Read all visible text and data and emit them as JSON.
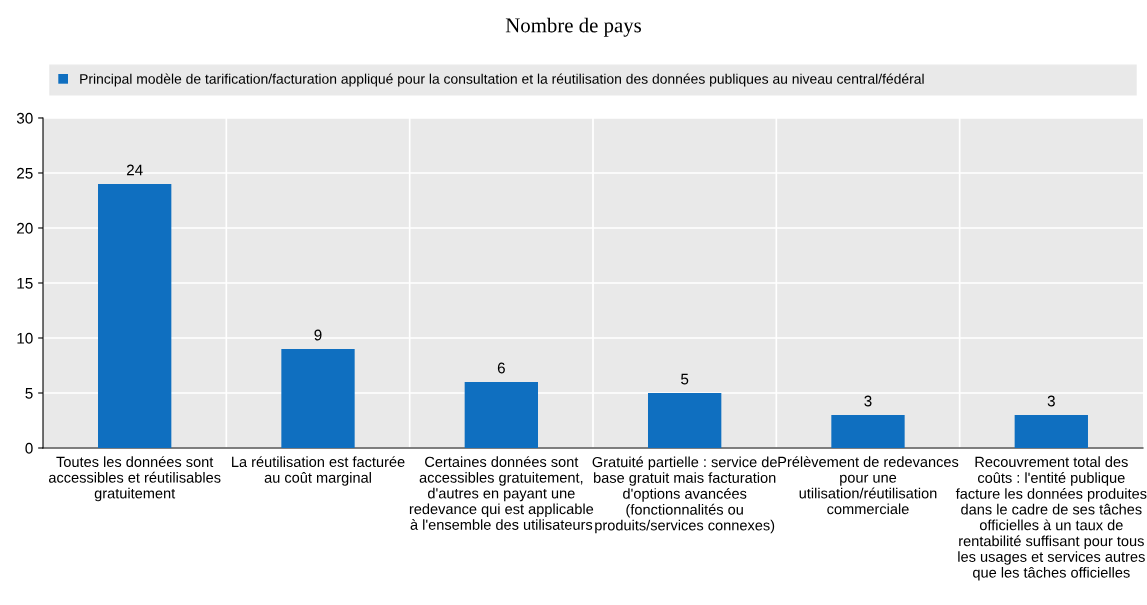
{
  "chart_data": {
    "type": "bar",
    "title": "Nombre de pays",
    "categories": [
      "Toutes les données sont\naccessibles et réutilisables\ngratuitement",
      "La réutilisation est facturée\nau coût marginal",
      "Certaines données sont\naccessibles gratuitement,\nd'autres en payant une\nredevance qui est applicable\nà l'ensemble des utilisateurs",
      "Gratuité partielle : service de\nbase gratuit mais facturation\nd'options avancées\n(fonctionnalités ou\nproduits/services connexes)",
      "Prélèvement de redevances\npour une\nutilisation/réutilisation\ncommerciale",
      "Recouvrement total des\ncoûts : l'entité publique\nfacture les données produites\ndans le cadre de ses tâches\nofficielles à un taux de\nrentabilité suffisant pour tous\nles usages et services autres\nque les tâches officielles"
    ],
    "series": [
      {
        "name": "Principal modèle de tarification/facturation appliqué pour la consultation et la réutilisation des données publiques au niveau central/fédéral",
        "color": "#0f6fc0",
        "values": [
          24,
          9,
          6,
          5,
          3,
          3
        ]
      }
    ],
    "ylim": [
      0,
      30
    ],
    "yticks": [
      0,
      5,
      10,
      15,
      20,
      25,
      30
    ],
    "grid": true,
    "legend": "top",
    "data_labels": true
  }
}
